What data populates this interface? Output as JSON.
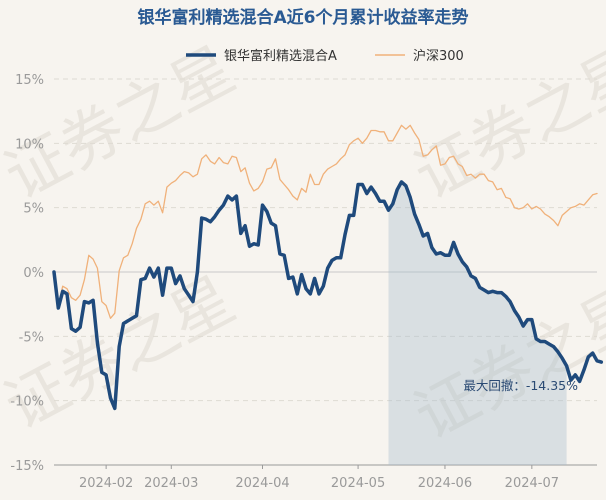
{
  "chart_data": {
    "type": "line",
    "title": "银华富利精选混合A近6个月累计收益率走势",
    "watermark": "证券之星",
    "ylim": [
      -15,
      15
    ],
    "yticks": [
      15,
      10,
      5,
      0,
      -5,
      -10,
      -15
    ],
    "ytick_labels": [
      "15%",
      "10%",
      "5%",
      "0%",
      "-5%",
      "-10%",
      "-15%"
    ],
    "xlim": [
      0,
      125
    ],
    "xticks": [
      12,
      27,
      48,
      70,
      90,
      110
    ],
    "xtick_labels": [
      "2024-02",
      "2024-03",
      "2024-04",
      "2024-05",
      "2024-06",
      "2024-07"
    ],
    "drawdown_region": [
      77,
      118
    ],
    "annotation": "最大回撤：-14.35%",
    "series": [
      {
        "name": "银华富利精选混合A",
        "color": "#1f4a7c",
        "values": [
          0,
          -2.8,
          -1.5,
          -1.7,
          -4.4,
          -4.6,
          -4.3,
          -2.3,
          -2.4,
          -2.2,
          -5.5,
          -7.8,
          -8.0,
          -9.8,
          -10.6,
          -5.8,
          -4.0,
          -3.8,
          -3.6,
          -3.4,
          -0.6,
          -0.5,
          0.3,
          -0.4,
          0.3,
          -1.8,
          0.3,
          0.3,
          -0.9,
          -0.3,
          -1.3,
          -1.8,
          -2.3,
          0.0,
          4.2,
          4.1,
          3.9,
          4.3,
          4.8,
          5.2,
          5.9,
          5.6,
          5.9,
          3.0,
          3.6,
          2.0,
          2.2,
          2.1,
          5.2,
          4.7,
          3.8,
          3.6,
          1.4,
          1.3,
          -0.5,
          -0.4,
          -1.7,
          -0.2,
          -1.3,
          -1.7,
          -0.5,
          -1.7,
          -1.1,
          0.3,
          0.9,
          1.1,
          1.1,
          2.9,
          4.4,
          4.4,
          6.8,
          6.8,
          6.1,
          6.6,
          6.1,
          5.5,
          5.5,
          4.8,
          5.3,
          6.4,
          7.0,
          6.7,
          5.8,
          4.5,
          3.7,
          2.8,
          3.0,
          1.9,
          1.4,
          1.5,
          1.3,
          1.3,
          2.3,
          1.4,
          0.8,
          0.4,
          -0.3,
          -0.5,
          -1.2,
          -1.4,
          -1.6,
          -1.5,
          -1.6,
          -1.6,
          -1.9,
          -2.3,
          -3.0,
          -3.5,
          -4.2,
          -3.7,
          -3.7,
          -5.2,
          -5.4,
          -5.4,
          -5.6,
          -5.8,
          -6.2,
          -6.7,
          -7.3,
          -8.4,
          -8.0,
          -8.5,
          -7.6,
          -6.6,
          -6.3,
          -6.9,
          -7.0
        ]
      },
      {
        "name": "沪深300",
        "color": "#f0b17a",
        "values": [
          -0.3,
          -2.6,
          -1.1,
          -1.3,
          -2.0,
          -2.2,
          -1.8,
          -0.6,
          1.3,
          1.0,
          0.3,
          -2.3,
          -2.6,
          -3.6,
          -3.2,
          0.1,
          1.1,
          1.3,
          2.2,
          3.4,
          4.1,
          5.3,
          5.5,
          5.2,
          5.5,
          4.6,
          6.6,
          6.9,
          7.1,
          7.5,
          7.8,
          7.7,
          7.4,
          7.6,
          8.8,
          9.1,
          8.6,
          8.4,
          8.9,
          8.5,
          8.4,
          9.0,
          8.9,
          7.8,
          8.1,
          6.9,
          6.3,
          6.5,
          7.0,
          8.0,
          8.1,
          8.8,
          7.2,
          6.8,
          6.4,
          5.9,
          5.6,
          6.5,
          6.2,
          7.6,
          6.8,
          6.8,
          7.6,
          8.0,
          8.2,
          8.4,
          8.8,
          9.1,
          9.9,
          10.2,
          10.4,
          10.0,
          10.4,
          11.0,
          11.0,
          10.9,
          10.9,
          10.2,
          10.2,
          10.8,
          11.4,
          11.1,
          11.4,
          10.8,
          10.3,
          9.0,
          9.1,
          9.5,
          9.8,
          8.3,
          8.4,
          8.9,
          9.0,
          8.4,
          8.2,
          7.5,
          7.6,
          7.3,
          7.6,
          7.6,
          7.1,
          7.0,
          6.4,
          6.5,
          5.8,
          5.7,
          5.0,
          4.9,
          5.0,
          5.3,
          4.9,
          5.1,
          4.9,
          4.5,
          4.3,
          4.0,
          3.6,
          4.4,
          4.7,
          5.0,
          5.1,
          5.3,
          5.2,
          5.6,
          6.0,
          6.1
        ]
      }
    ]
  }
}
